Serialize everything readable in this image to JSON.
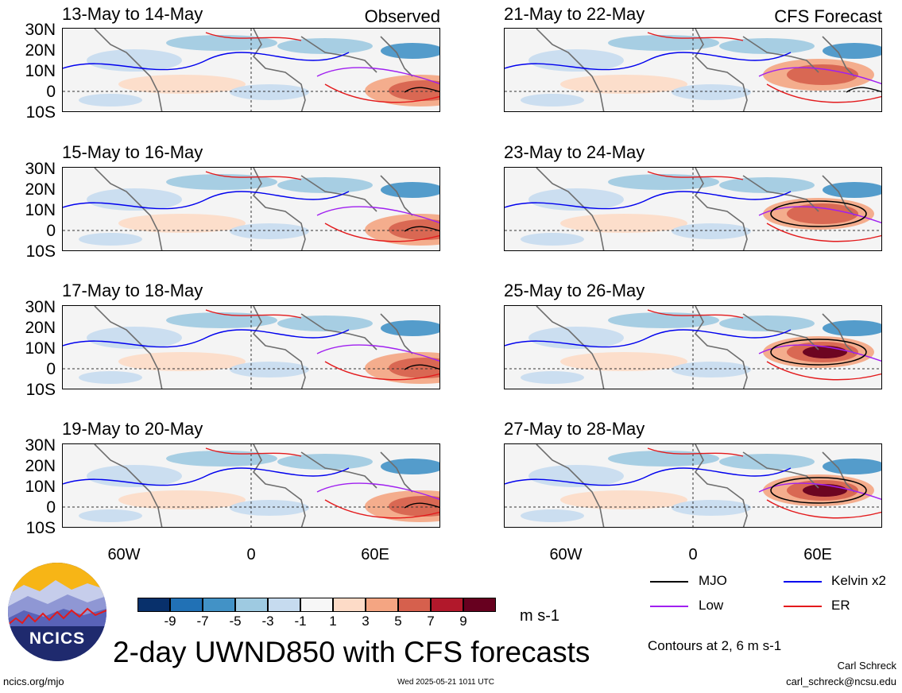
{
  "panels": [
    {
      "title": "13-May to 14-May",
      "tag": "Observed"
    },
    {
      "title": "21-May to 22-May",
      "tag": "CFS Forecast"
    },
    {
      "title": "15-May to 16-May",
      "tag": ""
    },
    {
      "title": "23-May to 24-May",
      "tag": ""
    },
    {
      "title": "17-May to 18-May",
      "tag": ""
    },
    {
      "title": "25-May to 26-May",
      "tag": ""
    },
    {
      "title": "19-May to 20-May",
      "tag": ""
    },
    {
      "title": "27-May to 28-May",
      "tag": ""
    }
  ],
  "lat_labels": [
    "30N",
    "20N",
    "10N",
    "0",
    "10S"
  ],
  "lon_labels": [
    "60W",
    "0",
    "60E"
  ],
  "colorbar": {
    "colors": [
      "#08306b",
      "#2171b5",
      "#4292c6",
      "#9ecae1",
      "#c6dbef",
      "#f7f7f7",
      "#fddbc7",
      "#f4a582",
      "#d6604d",
      "#b2182b",
      "#67001f"
    ],
    "labels": [
      "-9",
      "-7",
      "-5",
      "-3",
      "-1",
      "1",
      "3",
      "5",
      "7",
      "9"
    ],
    "unit": "m s-1"
  },
  "legend": [
    {
      "label": "MJO",
      "color": "#000000"
    },
    {
      "label": "Kelvin x2",
      "color": "#0000ee"
    },
    {
      "label": "Low",
      "color": "#a020f0"
    },
    {
      "label": "ER",
      "color": "#e31a1c"
    }
  ],
  "main_title": "2-day UWND850 with CFS forecasts",
  "contours_note": "Contours at 2, 6 m s-1",
  "logo": {
    "text": "NCICS"
  },
  "footer": {
    "left": "ncics.org/mjo",
    "center": "Wed 2025-05-21 1011 UTC",
    "author": "Carl Schreck",
    "email": "carl_schreck@ncsu.edu"
  }
}
